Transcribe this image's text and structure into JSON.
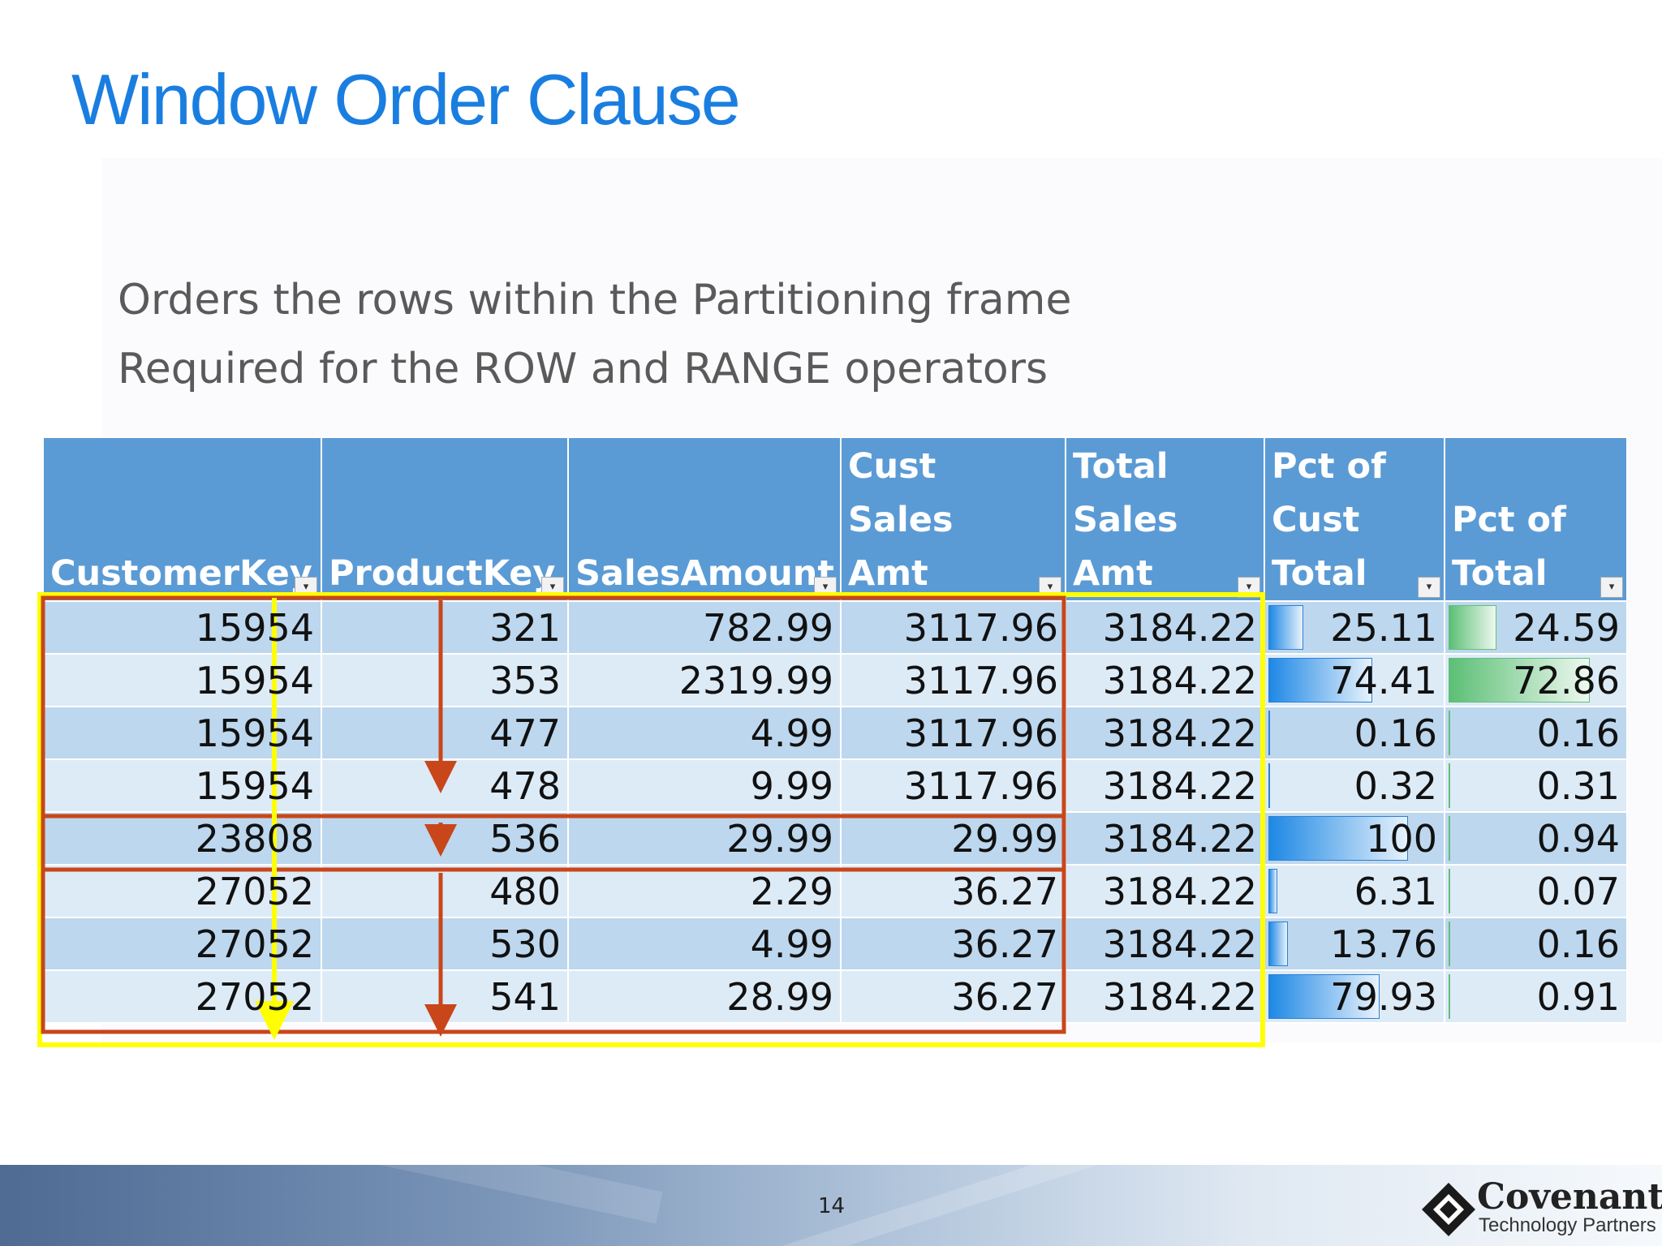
{
  "slide": {
    "title": "Window Order Clause",
    "bullets": [
      "Orders the rows within the Partitioning frame",
      "Required for the ROW and RANGE operators"
    ],
    "page_number": "14"
  },
  "table": {
    "headers": [
      "CustomerKey",
      "ProductKey",
      "SalesAmount",
      "Cust Sales\nAmt",
      "Total\nSales Amt",
      "Pct of\nCust\nTotal",
      "Pct of\nTotal"
    ],
    "rows": [
      [
        "15954",
        "321",
        "782.99",
        "3117.96",
        "3184.22",
        "25.11",
        "24.59"
      ],
      [
        "15954",
        "353",
        "2319.99",
        "3117.96",
        "3184.22",
        "74.41",
        "72.86"
      ],
      [
        "15954",
        "477",
        "4.99",
        "3117.96",
        "3184.22",
        "0.16",
        "0.16"
      ],
      [
        "15954",
        "478",
        "9.99",
        "3117.96",
        "3184.22",
        "0.32",
        "0.31"
      ],
      [
        "23808",
        "536",
        "29.99",
        "29.99",
        "3184.22",
        "100",
        "0.94"
      ],
      [
        "27052",
        "480",
        "2.29",
        "36.27",
        "3184.22",
        "6.31",
        "0.07"
      ],
      [
        "27052",
        "530",
        "4.99",
        "36.27",
        "3184.22",
        "13.76",
        "0.16"
      ],
      [
        "27052",
        "541",
        "28.99",
        "36.27",
        "3184.22",
        "79.93",
        "0.91"
      ]
    ],
    "databar_columns": [
      5,
      6
    ],
    "databar_colors": {
      "5": "blue",
      "6": "green"
    }
  },
  "annotations": {
    "partition_box_color": "#c8461a",
    "window_box_color": "#ffff00",
    "arrow_color": "#c8461a",
    "order_arrow_color": "#ffff00"
  },
  "logo": {
    "name": "Covenant",
    "tagline": "Technology Partners"
  }
}
